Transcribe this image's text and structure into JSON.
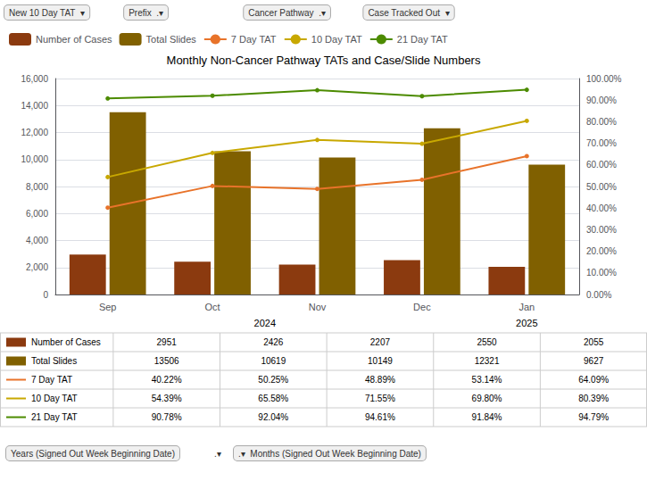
{
  "chart_data": {
    "type": "bar",
    "title": "Monthly Non-Cancer Pathway TATs and Case/Slide Numbers",
    "categories": [
      "Sep",
      "Oct",
      "Nov",
      "Dec",
      "Jan"
    ],
    "series": [
      {
        "name": "Number of Cases",
        "type": "bar",
        "color": "#8B3A0F",
        "values": [
          2951,
          2426,
          2207,
          2550,
          2055
        ]
      },
      {
        "name": "Total Slides",
        "type": "bar",
        "color": "#806000",
        "values": [
          13506,
          10619,
          10149,
          12321,
          9627
        ]
      },
      {
        "name": "7 Day TAT",
        "type": "line",
        "axis": "y2",
        "marker": "circle",
        "color": "#E8732A",
        "values": [
          0.4022,
          0.5025,
          0.4889,
          0.5314,
          0.6409
        ]
      },
      {
        "name": "10 Day TAT",
        "type": "line",
        "axis": "y2",
        "marker": "circle",
        "color": "#C8A800",
        "values": [
          0.5439,
          0.6558,
          0.7155,
          0.698,
          0.8039
        ]
      },
      {
        "name": "21 Day TAT",
        "type": "line",
        "axis": "y2",
        "marker": "circle",
        "color": "#4C8B00",
        "values": [
          0.9078,
          0.9204,
          0.9461,
          0.9184,
          0.9479
        ]
      }
    ],
    "ylim": [
      0,
      16000
    ],
    "yticks": [
      0,
      {
        "value": 2000,
        "label": "2,000"
      },
      {
        "value": 4000,
        "label": "4,000"
      },
      {
        "value": 6000,
        "label": "6,000"
      },
      {
        "value": 8000,
        "label": "8,000"
      },
      {
        "value": 10000,
        "label": "10,000"
      },
      {
        "value": 12000,
        "label": "12,000"
      },
      {
        "value": 14000,
        "label": "14,000"
      },
      {
        "value": 16000,
        "label": "16,000"
      }
    ],
    "y2lim": [
      0.0,
      1.0
    ],
    "y2ticks": [
      {
        "value": 0.0,
        "label": "0.00%"
      },
      {
        "value": 0.1,
        "label": "10.00%"
      },
      {
        "value": 0.2,
        "label": "20.00%"
      },
      {
        "value": 0.3,
        "label": "30.00%"
      },
      {
        "value": 0.4,
        "label": "40.00%"
      },
      {
        "value": 0.5,
        "label": "50.00%"
      },
      {
        "value": 0.6,
        "label": "60.00%"
      },
      {
        "value": 0.7,
        "label": "70.00%"
      },
      {
        "value": 0.8,
        "label": "80.00%"
      },
      {
        "value": 0.9,
        "label": "90.00%"
      },
      {
        "value": 1.0,
        "label": "100.00%"
      }
    ],
    "grid": true,
    "legend": "upper left",
    "year_labels": [
      {
        "text": "2024",
        "categories": [
          "Sep",
          "Oct",
          "Nov",
          "Dec"
        ]
      },
      {
        "text": "2025",
        "categories": [
          "Jan"
        ]
      }
    ],
    "table": {
      "row_labels": [
        "Number of Cases",
        "Total Slides",
        "7 Day TAT",
        "10 Day TAT",
        "21 Day TAT"
      ],
      "cells": [
        [
          "2951",
          "2426",
          "2207",
          "2550",
          "2055"
        ],
        [
          "13506",
          "10619",
          "10149",
          "12321",
          "9627"
        ],
        [
          "40.22%",
          "50.25%",
          "48.89%",
          "53.14%",
          "64.09%"
        ],
        [
          "54.39%",
          "65.58%",
          "71.55%",
          "69.80%",
          "80.39%"
        ],
        [
          "90.78%",
          "92.04%",
          "94.61%",
          "91.84%",
          "94.79%"
        ]
      ]
    },
    "filter_bar_text": [
      "New 10 Day TAT  ▾",
      "Prefix  .▾",
      "Cancer Pathway  .▾",
      "Case Tracked Out  ▾"
    ],
    "footer_text": [
      "Years (Signed Out Week Beginning Date)",
      ".▾",
      ".▾  Months (Signed Out Week Beginning Date)"
    ]
  }
}
